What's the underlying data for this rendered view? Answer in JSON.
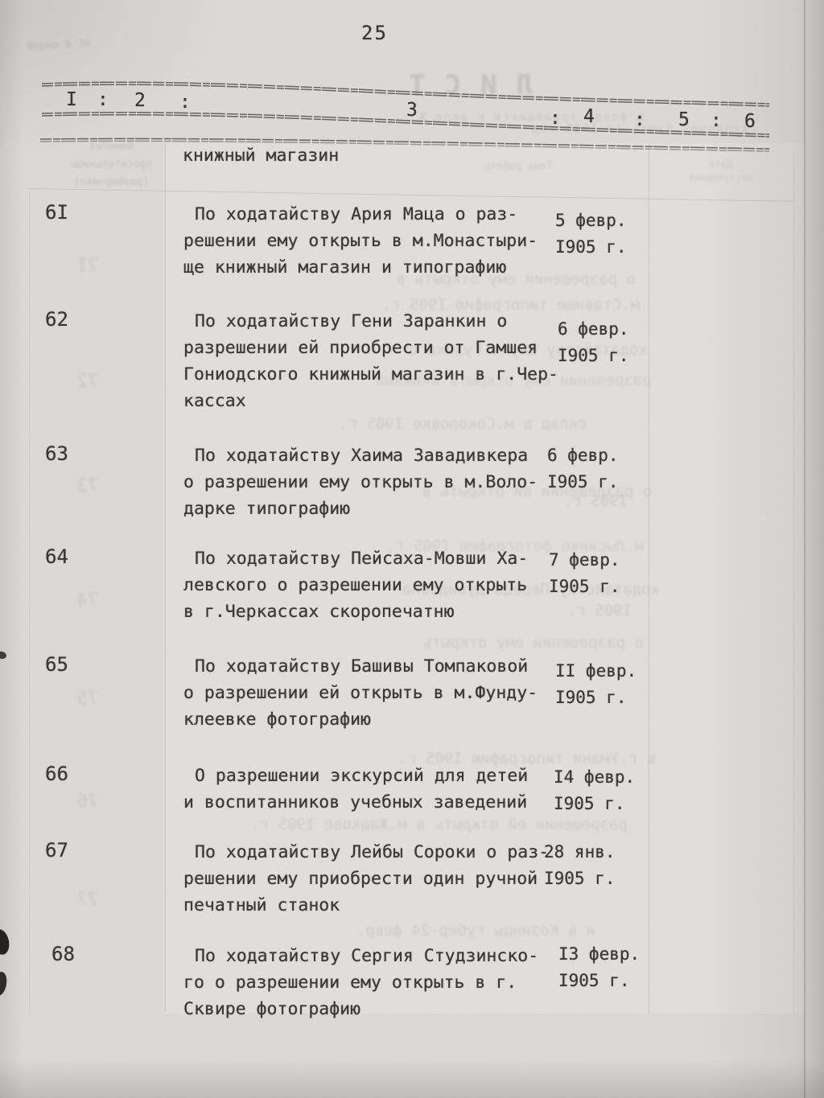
{
  "page_number": "25",
  "ruler_cells": [
    "I",
    ":",
    "2",
    ":",
    "3",
    ":",
    "4",
    ":",
    "5",
    ":",
    "6"
  ],
  "section_heading": "книжный магазин",
  "entries": [
    {
      "number": "6I",
      "text_lines": [
        "По ходатайству Ария Маца о раз-",
        "решении ему открыть в м.Монастыри-",
        "ще книжный магазин и типографию"
      ],
      "date_lines": [
        "5 февр.",
        "I905 г."
      ]
    },
    {
      "number": "62",
      "text_lines": [
        "По ходатайству Гени Заранкин о",
        "разрешении ей приобрести от Гамшея",
        "Гониодского книжный магазин в г.Чер-",
        "кассах"
      ],
      "date_lines": [
        "6 февр.",
        "I905 г."
      ]
    },
    {
      "number": "63",
      "text_lines": [
        "По ходатайству Хаима Завадивкера",
        "о разрешении ему открыть в м.Воло-",
        "дарке типографию"
      ],
      "date_lines": [
        "6 февр.",
        "I905 г."
      ]
    },
    {
      "number": "64",
      "text_lines": [
        "По ходатайству Пейсаха-Мовши Ха-",
        "левского о разрешении ему открыть",
        "в г.Черкассах скоропечатню"
      ],
      "date_lines": [
        "7 февр.",
        "I905 г."
      ]
    },
    {
      "number": "65",
      "text_lines": [
        "По ходатайству Башивы Томпаковой",
        "о разрешении ей открыть в м.Фунду-",
        "клеевке фотографию"
      ],
      "date_lines": [
        "II февр.",
        "I905 г."
      ]
    },
    {
      "number": "66",
      "text_lines": [
        "О разрешении экскурсий для детей",
        "и воспитанников учебных заведений"
      ],
      "date_lines": [
        "I4 февр.",
        "I905 г."
      ]
    },
    {
      "number": "67",
      "text_lines": [
        "По ходатайству Лейбы Сороки о раз-",
        "решении ему приобрести один ручной",
        "печатный станок"
      ],
      "date_lines": [
        "28 янв.",
        "I905 г."
      ]
    },
    {
      "number": "68",
      "text_lines": [
        "По ходатайству Сергия Студзинско-",
        "го о разрешении ему открыть в г.",
        "Сквире фотографию"
      ],
      "date_lines": [
        "I3 февр.",
        "I905 г."
      ]
    }
  ],
  "bleedthrough": {
    "stamp_top_left": "Форма № 30",
    "sheet_word": "ЛИСТ",
    "sheet_subtitle": "№ фонда хранящихся в деле №",
    "sheet_subtitle2": "входящих бумаг за I905 год",
    "col1_header_lines": [
      "Фамилия",
      "просительницы",
      "(разборчиво)"
    ],
    "col3_header": "Тема работы",
    "col5_header_lines": [
      "Дата",
      "поступления"
    ],
    "ghost_numbers": [
      "7I",
      "72",
      "73",
      "74",
      "75",
      "76",
      "77"
    ],
    "ghost_lines": [
      "о разрешении ему открыть в",
      "м.Ставище типографию I905 г.",
      "ходатайству Шмуля Гузика о",
      "разрешении ему открыть книжный",
      "склад в м.Соколовке I905 г.",
      "о разрешении ей открыть в",
      "I905 г.",
      "м.Лысянке фотографию I905 г.",
      "ходатайству Переца Дувидзона",
      "I905 г.",
      "о разрешении ему открыть",
      "в г.Умани типографию I905 г.",
      "разрешении ей открыть в м.Жашкове I905 г.",
      "и в Козинцы губер-24 февр."
    ]
  }
}
